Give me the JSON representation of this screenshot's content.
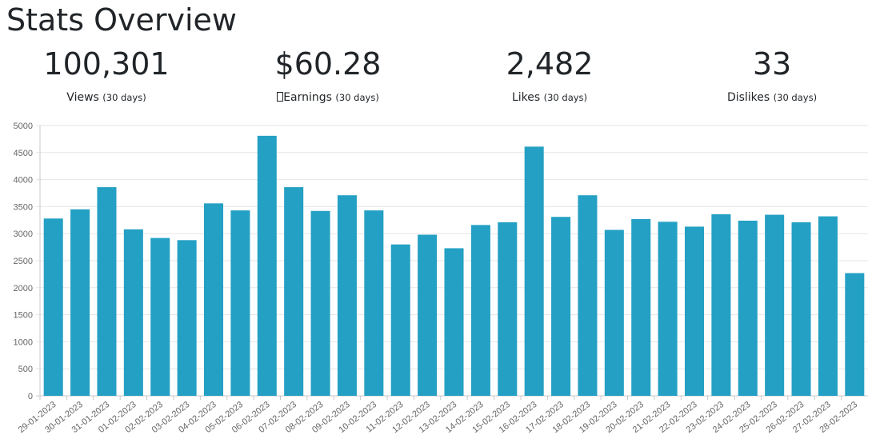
{
  "page": {
    "title": "Stats Overview"
  },
  "stats": [
    {
      "key": "views",
      "value": "100,301",
      "label": "Views",
      "period": "(30 days)"
    },
    {
      "key": "earnings",
      "value": "$60.28",
      "label": "Earnings",
      "icon": "info-icon",
      "period": "(30 days)"
    },
    {
      "key": "likes",
      "value": "2,482",
      "label": "Likes",
      "period": "(30 days)"
    },
    {
      "key": "dislikes",
      "value": "33",
      "label": "Dislikes",
      "period": "(30 days)"
    }
  ],
  "chart_data": {
    "type": "bar",
    "title": "",
    "xlabel": "",
    "ylabel": "",
    "ylim": [
      0,
      5000
    ],
    "yticks": [
      0,
      500,
      1000,
      1500,
      2000,
      2500,
      3000,
      3500,
      4000,
      4500,
      5000
    ],
    "grid": true,
    "legend": "none",
    "bar_color": "#24a0c4",
    "categories": [
      "29-01-2023",
      "30-01-2023",
      "31-01-2023",
      "01-02-2023",
      "02-02-2023",
      "03-02-2023",
      "04-02-2023",
      "05-02-2023",
      "06-02-2023",
      "07-02-2023",
      "08-02-2023",
      "09-02-2023",
      "10-02-2023",
      "11-02-2023",
      "12-02-2023",
      "13-02-2023",
      "14-02-2023",
      "15-02-2023",
      "16-02-2023",
      "17-02-2023",
      "18-02-2023",
      "19-02-2023",
      "20-02-2023",
      "21-02-2023",
      "22-02-2023",
      "23-02-2023",
      "24-02-2023",
      "25-02-2023",
      "26-02-2023",
      "27-02-2023",
      "28-02-2023"
    ],
    "values": [
      3280,
      3450,
      3860,
      3080,
      2920,
      2880,
      3560,
      3430,
      4810,
      3860,
      3420,
      3710,
      3430,
      2800,
      2980,
      2730,
      3160,
      3210,
      4610,
      3310,
      3710,
      3070,
      3270,
      3220,
      3130,
      3360,
      3240,
      3350,
      3210,
      3320,
      2270
    ]
  }
}
